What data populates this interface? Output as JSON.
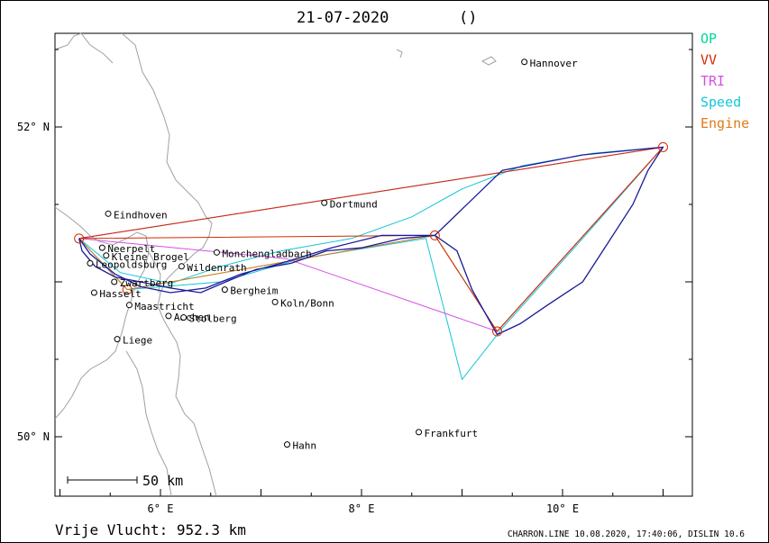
{
  "header": {
    "date": "21-07-2020",
    "paren": "()"
  },
  "legend": [
    {
      "label": "OP",
      "color": "#00d69a"
    },
    {
      "label": "VV",
      "color": "#d42a00"
    },
    {
      "label": "TRI",
      "color": "#d74ee6"
    },
    {
      "label": "Speed",
      "color": "#13c5d6"
    },
    {
      "label": "Engine",
      "color": "#e07a16"
    }
  ],
  "axes": {
    "lat_labels": [
      {
        "text": "52° N",
        "lat": 52
      },
      {
        "text": "50° N",
        "lat": 50
      }
    ],
    "lon_labels": [
      {
        "text": "6° E",
        "lon": 6
      },
      {
        "text": "8° E",
        "lon": 8
      },
      {
        "text": "10° E",
        "lon": 10
      }
    ]
  },
  "places": [
    {
      "name": "Hannover",
      "lon": 9.62,
      "lat": 52.42
    },
    {
      "name": "Dortmund",
      "lon": 7.63,
      "lat": 51.51
    },
    {
      "name": "Eindhoven",
      "lon": 5.48,
      "lat": 51.44
    },
    {
      "name": "Monchengladbach",
      "lon": 6.56,
      "lat": 51.19
    },
    {
      "name": "Neerpelt",
      "lon": 5.42,
      "lat": 51.22
    },
    {
      "name": "Kleine Brogel",
      "lon": 5.46,
      "lat": 51.17
    },
    {
      "name": "Leopoldsburg",
      "lon": 5.3,
      "lat": 51.12
    },
    {
      "name": "Wildenrath",
      "lon": 6.21,
      "lat": 51.1
    },
    {
      "name": "Zwartberg",
      "lon": 5.54,
      "lat": 51.0
    },
    {
      "name": "Hasselt",
      "lon": 5.34,
      "lat": 50.93
    },
    {
      "name": "Bergheim",
      "lon": 6.64,
      "lat": 50.95
    },
    {
      "name": "Maastricht",
      "lon": 5.69,
      "lat": 50.85
    },
    {
      "name": "Aachen",
      "lon": 6.08,
      "lat": 50.78
    },
    {
      "name": "Koln/Bonn",
      "lon": 7.14,
      "lat": 50.87
    },
    {
      "name": "Stolberg",
      "lon": 6.23,
      "lat": 50.77
    },
    {
      "name": "Liege",
      "lon": 5.57,
      "lat": 50.63
    },
    {
      "name": "Frankfurt",
      "lon": 8.57,
      "lat": 50.03
    },
    {
      "name": "Hahn",
      "lon": 7.26,
      "lat": 49.95
    }
  ],
  "turnpoints": [
    {
      "lon": 5.19,
      "lat": 51.28
    },
    {
      "lon": 5.67,
      "lat": 50.95
    },
    {
      "lon": 8.73,
      "lat": 51.3
    },
    {
      "lon": 9.35,
      "lat": 50.68
    },
    {
      "lon": 11.0,
      "lat": 51.87
    }
  ],
  "tracks": {
    "op": [
      [
        5.19,
        51.28
      ],
      [
        5.67,
        50.95
      ],
      [
        8.73,
        51.3
      ],
      [
        9.35,
        50.68
      ],
      [
        11.0,
        51.87
      ],
      [
        5.19,
        51.28
      ]
    ],
    "vv": [
      [
        5.19,
        51.28
      ],
      [
        8.73,
        51.3
      ],
      [
        9.35,
        50.68
      ],
      [
        11.0,
        51.87
      ],
      [
        5.19,
        51.28
      ]
    ],
    "tri": [
      [
        5.19,
        51.28
      ],
      [
        7.25,
        51.15
      ],
      [
        9.35,
        50.68
      ],
      [
        11.0,
        51.87
      ],
      [
        5.19,
        51.28
      ]
    ],
    "speed": [
      [
        11.0,
        51.87
      ],
      [
        10.3,
        51.83
      ],
      [
        9.6,
        51.75
      ],
      [
        9.0,
        51.6
      ],
      [
        8.5,
        51.42
      ],
      [
        7.9,
        51.28
      ],
      [
        7.2,
        51.2
      ],
      [
        6.6,
        51.1
      ],
      [
        6.1,
        50.99
      ],
      [
        5.6,
        51.06
      ],
      [
        5.19,
        51.28
      ],
      [
        5.67,
        50.95
      ],
      [
        6.6,
        51.0
      ],
      [
        7.4,
        51.15
      ],
      [
        8.64,
        51.28
      ],
      [
        9.0,
        50.37
      ],
      [
        9.4,
        50.7
      ],
      [
        10.2,
        51.28
      ],
      [
        11.0,
        51.87
      ]
    ],
    "engine": [
      [
        5.19,
        51.28
      ],
      [
        5.67,
        50.95
      ],
      [
        8.73,
        51.3
      ],
      [
        9.35,
        50.68
      ],
      [
        11.0,
        51.87
      ]
    ],
    "flown": [
      [
        11.0,
        51.87
      ],
      [
        10.85,
        51.72
      ],
      [
        10.7,
        51.5
      ],
      [
        10.45,
        51.25
      ],
      [
        10.2,
        51.0
      ],
      [
        9.85,
        50.85
      ],
      [
        9.58,
        50.73
      ],
      [
        9.35,
        50.66
      ],
      [
        9.1,
        50.95
      ],
      [
        8.95,
        51.2
      ],
      [
        8.73,
        51.3
      ],
      [
        8.4,
        51.28
      ],
      [
        8.0,
        51.22
      ],
      [
        7.65,
        51.2
      ],
      [
        7.3,
        51.12
      ],
      [
        6.95,
        51.08
      ],
      [
        6.65,
        51.0
      ],
      [
        6.4,
        50.93
      ],
      [
        6.1,
        50.96
      ],
      [
        5.8,
        51.0
      ],
      [
        5.55,
        51.03
      ],
      [
        5.35,
        51.1
      ],
      [
        5.22,
        51.2
      ],
      [
        5.19,
        51.28
      ],
      [
        5.3,
        51.18
      ],
      [
        5.55,
        51.05
      ],
      [
        5.8,
        50.97
      ],
      [
        6.1,
        50.93
      ],
      [
        6.45,
        50.96
      ],
      [
        6.8,
        51.05
      ],
      [
        7.2,
        51.12
      ],
      [
        7.7,
        51.22
      ],
      [
        8.2,
        51.3
      ],
      [
        8.73,
        51.3
      ],
      [
        9.4,
        51.72
      ],
      [
        10.2,
        51.82
      ],
      [
        11.0,
        51.87
      ]
    ]
  },
  "scale": {
    "label": "50 km"
  },
  "footer": {
    "distance": "Vrije Vlucht:  952.3 km",
    "credit": "CHARRON.LINE 10.08.2020, 17:40:06, DISLIN 10.6"
  }
}
